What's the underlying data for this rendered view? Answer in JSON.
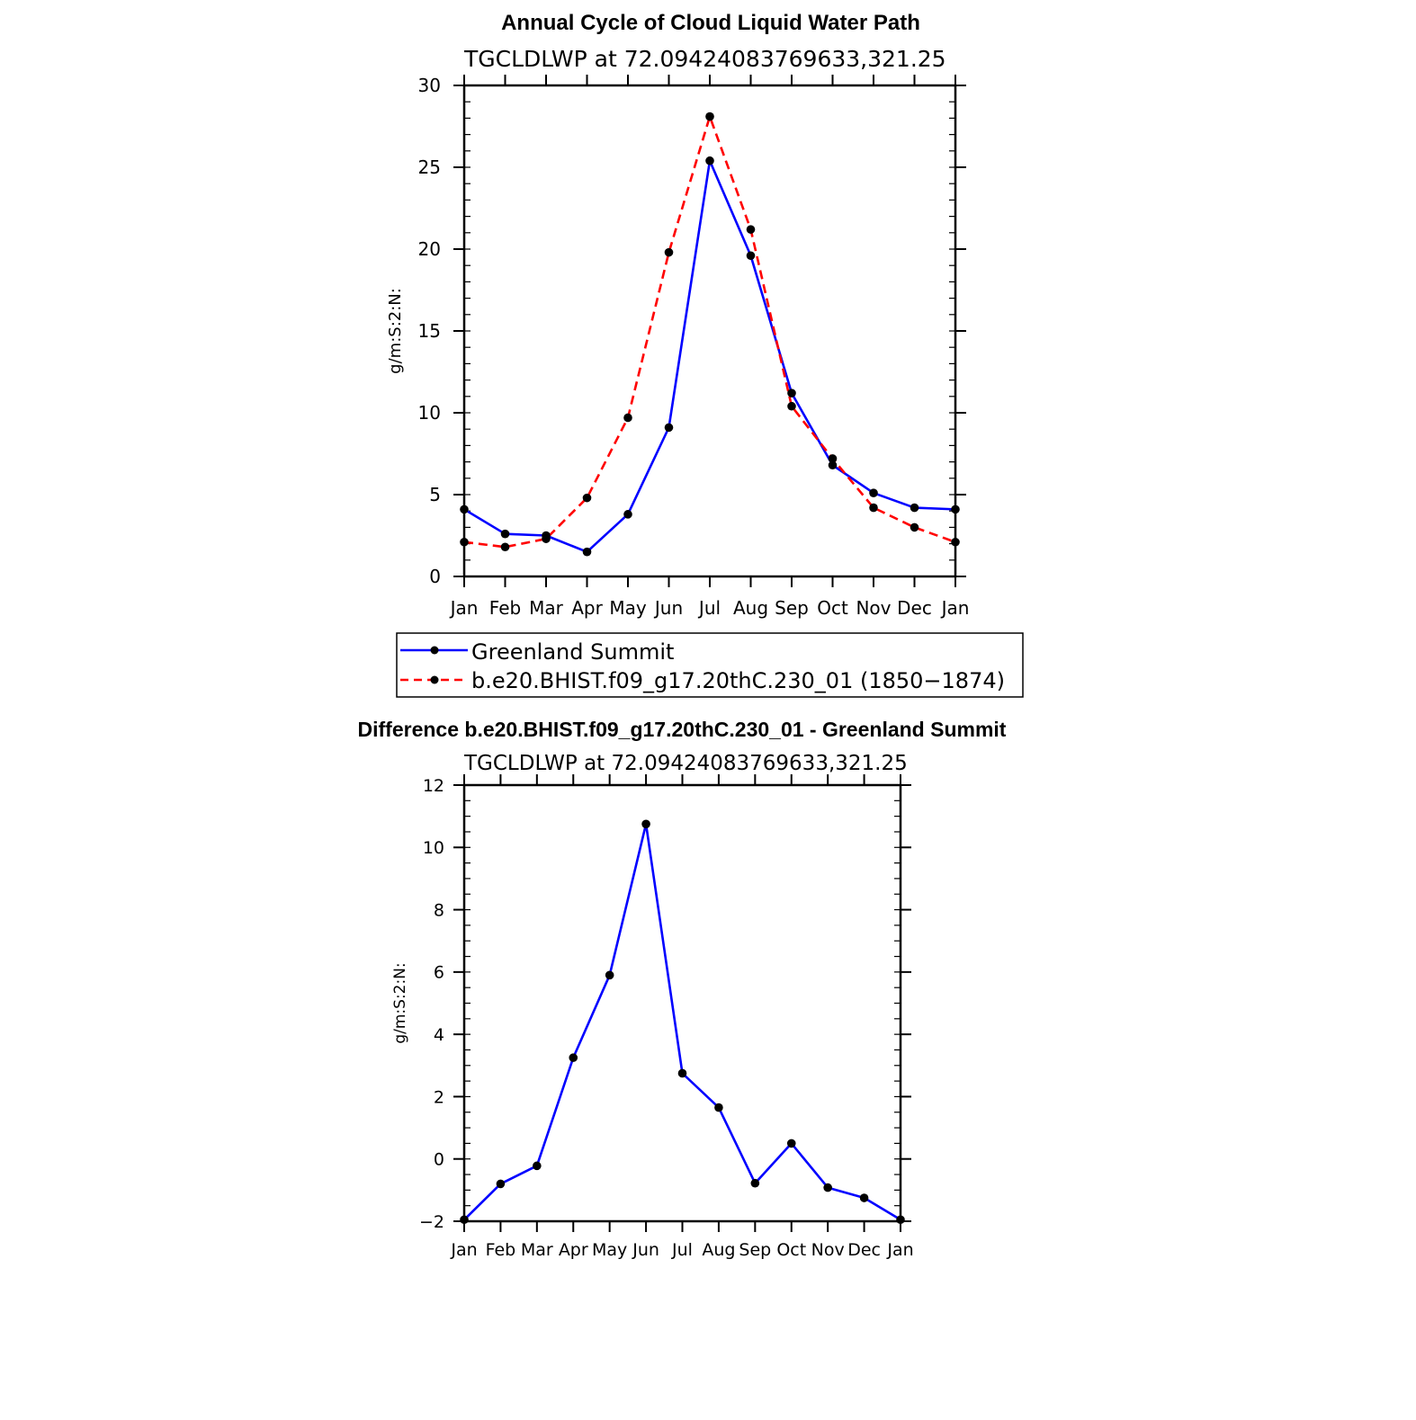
{
  "chart_data": [
    {
      "type": "line",
      "title": "Annual Cycle of Cloud Liquid Water Path",
      "subtitle": "TGCLDLWP at 72.09424083769633,321.25",
      "xlabel": "",
      "ylabel": "g/m:S:2:N:",
      "categories": [
        "Jan",
        "Feb",
        "Mar",
        "Apr",
        "May",
        "Jun",
        "Jul",
        "Aug",
        "Sep",
        "Oct",
        "Nov",
        "Dec",
        "Jan"
      ],
      "ylim": [
        0,
        30
      ],
      "yticks": [
        0,
        5,
        10,
        15,
        20,
        25,
        30
      ],
      "grid": false,
      "legend_position": "bottom",
      "series": [
        {
          "name": "Greenland Summit",
          "color": "#0000ff",
          "dash": "solid",
          "values": [
            4.1,
            2.6,
            2.5,
            1.5,
            3.8,
            9.1,
            25.4,
            19.6,
            11.2,
            6.8,
            5.1,
            4.2,
            4.1
          ]
        },
        {
          "name": "b.e20.BHIST.f09_g17.20thC.230_01 (1850−1874)",
          "color": "#ff0000",
          "dash": "dashed",
          "values": [
            2.1,
            1.8,
            2.3,
            4.8,
            9.7,
            19.8,
            28.1,
            21.2,
            10.4,
            7.2,
            4.2,
            3.0,
            2.1
          ]
        }
      ]
    },
    {
      "type": "line",
      "title": "Difference b.e20.BHIST.f09_g17.20thC.230_01 - Greenland Summit",
      "subtitle": "TGCLDLWP at 72.09424083769633,321.25",
      "xlabel": "",
      "ylabel": "g/m:S:2:N:",
      "categories": [
        "Jan",
        "Feb",
        "Mar",
        "Apr",
        "May",
        "Jun",
        "Jul",
        "Aug",
        "Sep",
        "Oct",
        "Nov",
        "Dec",
        "Jan"
      ],
      "ylim": [
        -2,
        12
      ],
      "yticks": [
        -2,
        0,
        2,
        4,
        6,
        8,
        10,
        12
      ],
      "grid": false,
      "series": [
        {
          "color": "#0000ff",
          "dash": "solid",
          "values": [
            -1.95,
            -0.8,
            -0.22,
            3.25,
            5.9,
            10.75,
            2.75,
            1.65,
            -0.78,
            0.5,
            -0.92,
            -1.25,
            -1.95
          ]
        }
      ]
    }
  ]
}
